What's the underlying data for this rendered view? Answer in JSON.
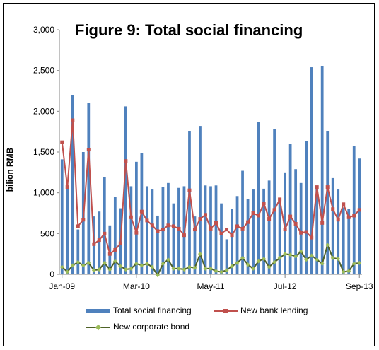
{
  "chart_data": {
    "type": "bar",
    "title": "Figure 9: Total social financing",
    "ylabel": "bilion RMB",
    "xlabel": "",
    "ylim": [
      0,
      3000
    ],
    "yticks": [
      "0",
      "500",
      "1,000",
      "1,500",
      "2,000",
      "2,500",
      "3,000"
    ],
    "ytick_values": [
      0,
      500,
      1000,
      1500,
      2000,
      2500,
      3000
    ],
    "xtick_labels": [
      "Jan-09",
      "Mar-10",
      "May-11",
      "Jul-12",
      "Sep-13"
    ],
    "xtick_indices": [
      0,
      14,
      28,
      42,
      56
    ],
    "grid": false,
    "legend": "bottom",
    "colors": {
      "Total social financing": "#4F81BD",
      "New bank lending": "#C0504D",
      "New corporate bond": "#9BBB59"
    },
    "series": [
      {
        "name": "Total social financing",
        "kind": "bar",
        "values": [
          1410,
          1070,
          2200,
          550,
          1500,
          2100,
          710,
          770,
          1190,
          600,
          950,
          810,
          2060,
          1080,
          1380,
          1490,
          1080,
          1040,
          720,
          1070,
          1120,
          870,
          1060,
          1080,
          1760,
          710,
          1820,
          1090,
          1080,
          1090,
          870,
          430,
          800,
          960,
          1270,
          920,
          1040,
          1870,
          1050,
          1150,
          1780,
          900,
          1250,
          1600,
          1290,
          1120,
          1630,
          2540,
          1050,
          2550,
          1760,
          1180,
          1040,
          820,
          800,
          1570,
          1420
        ]
      },
      {
        "name": "New bank lending",
        "kind": "line",
        "values": [
          1620,
          1070,
          1890,
          590,
          670,
          1530,
          370,
          420,
          500,
          250,
          300,
          380,
          1390,
          700,
          510,
          770,
          660,
          600,
          530,
          550,
          600,
          590,
          560,
          480,
          1030,
          550,
          680,
          730,
          560,
          630,
          500,
          550,
          480,
          590,
          560,
          640,
          750,
          720,
          870,
          680,
          790,
          920,
          550,
          710,
          620,
          510,
          520,
          450,
          1070,
          630,
          1070,
          800,
          670,
          860,
          700,
          720,
          790
        ]
      },
      {
        "name": "New corporate bond",
        "kind": "line",
        "values": [
          90,
          30,
          110,
          150,
          110,
          140,
          50,
          60,
          140,
          60,
          160,
          100,
          60,
          70,
          130,
          110,
          130,
          90,
          -10,
          130,
          180,
          70,
          70,
          60,
          90,
          80,
          250,
          70,
          70,
          40,
          30,
          50,
          100,
          140,
          200,
          120,
          70,
          160,
          190,
          90,
          150,
          200,
          250,
          240,
          220,
          280,
          180,
          230,
          180,
          130,
          360,
          200,
          190,
          30,
          40,
          130,
          140
        ]
      }
    ]
  }
}
